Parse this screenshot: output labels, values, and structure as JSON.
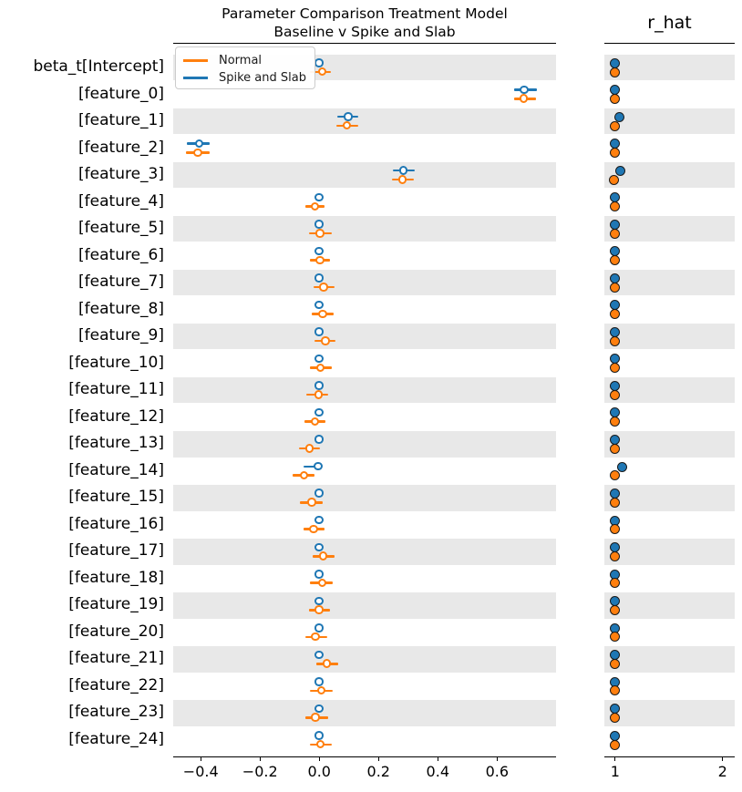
{
  "figure": {
    "title_line1": "Parameter Comparison Treatment Model",
    "title_line2": "Baseline v Spike and Slab",
    "rhat_title": "r_hat"
  },
  "legend": {
    "items": [
      {
        "label": "Normal",
        "color": "#ff7f0e"
      },
      {
        "label": "Spike and Slab",
        "color": "#1f77b4"
      }
    ]
  },
  "colors": {
    "normal": "#ff7f0e",
    "spike_slab": "#1f77b4",
    "band": "#e8e8e8"
  },
  "chart_data": {
    "type": "forest",
    "title": "Parameter Comparison Treatment Model\nBaseline v Spike and Slab",
    "legend_position": "upper left",
    "series": [
      {
        "name": "Normal",
        "color": "#ff7f0e"
      },
      {
        "name": "Spike and Slab",
        "color": "#1f77b4"
      }
    ],
    "estimate_axis": {
      "xlim": [
        -0.493,
        0.799
      ],
      "ticks": [
        {
          "v": -0.4,
          "label": "−0.4"
        },
        {
          "v": -0.2,
          "label": "−0.2"
        },
        {
          "v": 0.0,
          "label": "0.0"
        },
        {
          "v": 0.2,
          "label": "0.2"
        },
        {
          "v": 0.4,
          "label": "0.4"
        },
        {
          "v": 0.6,
          "label": "0.6"
        }
      ]
    },
    "rhat_axis": {
      "title": "r_hat",
      "xlim": [
        0.9,
        2.113
      ],
      "ticks": [
        {
          "v": 1,
          "label": "1"
        },
        {
          "v": 2,
          "label": "2"
        }
      ]
    },
    "rows": [
      {
        "label": "beta_t[Intercept]",
        "normal": {
          "mean": 0.01,
          "lo": -0.031,
          "hi": 0.039,
          "rhat": 1.0
        },
        "spike_slab": {
          "mean": 0.0,
          "lo": null,
          "hi": null,
          "rhat": 1.0
        }
      },
      {
        "label": "[feature_0]",
        "normal": {
          "mean": 0.691,
          "lo": 0.656,
          "hi": 0.732,
          "rhat": 1.0
        },
        "spike_slab": {
          "mean": 0.692,
          "lo": 0.657,
          "hi": 0.733,
          "rhat": 1.0
        }
      },
      {
        "label": "[feature_1]",
        "normal": {
          "mean": 0.094,
          "lo": 0.059,
          "hi": 0.133,
          "rhat": 1.0
        },
        "spike_slab": {
          "mean": 0.099,
          "lo": 0.062,
          "hi": 0.131,
          "rhat": 1.04
        }
      },
      {
        "label": "[feature_2]",
        "normal": {
          "mean": -0.41,
          "lo": -0.449,
          "hi": -0.369,
          "rhat": 1.0
        },
        "spike_slab": {
          "mean": -0.405,
          "lo": -0.446,
          "hi": -0.371,
          "rhat": 1.0
        }
      },
      {
        "label": "[feature_3]",
        "normal": {
          "mean": 0.282,
          "lo": 0.246,
          "hi": 0.32,
          "rhat": 0.995
        },
        "spike_slab": {
          "mean": 0.285,
          "lo": 0.248,
          "hi": 0.323,
          "rhat": 1.055
        }
      },
      {
        "label": "[feature_4]",
        "normal": {
          "mean": -0.014,
          "lo": -0.046,
          "hi": 0.018,
          "rhat": 1.0
        },
        "spike_slab": {
          "mean": 0.0,
          "lo": null,
          "hi": null,
          "rhat": 1.0
        }
      },
      {
        "label": "[feature_5]",
        "normal": {
          "mean": 0.003,
          "lo": -0.034,
          "hi": 0.041,
          "rhat": 1.0
        },
        "spike_slab": {
          "mean": 0.0,
          "lo": null,
          "hi": null,
          "rhat": 1.0
        }
      },
      {
        "label": "[feature_6]",
        "normal": {
          "mean": 0.003,
          "lo": -0.031,
          "hi": 0.037,
          "rhat": 1.0
        },
        "spike_slab": {
          "mean": 0.0,
          "lo": null,
          "hi": null,
          "rhat": 1.0
        }
      },
      {
        "label": "[feature_7]",
        "normal": {
          "mean": 0.015,
          "lo": -0.019,
          "hi": 0.053,
          "rhat": 1.0
        },
        "spike_slab": {
          "mean": 0.0,
          "lo": null,
          "hi": null,
          "rhat": 1.0
        }
      },
      {
        "label": "[feature_8]",
        "normal": {
          "mean": 0.012,
          "lo": -0.025,
          "hi": 0.047,
          "rhat": 1.0
        },
        "spike_slab": {
          "mean": 0.0,
          "lo": null,
          "hi": null,
          "rhat": 1.0
        }
      },
      {
        "label": "[feature_9]",
        "normal": {
          "mean": 0.021,
          "lo": -0.015,
          "hi": 0.056,
          "rhat": 1.0
        },
        "spike_slab": {
          "mean": 0.0,
          "lo": null,
          "hi": null,
          "rhat": 1.0
        }
      },
      {
        "label": "[feature_10]",
        "normal": {
          "mean": 0.005,
          "lo": -0.031,
          "hi": 0.041,
          "rhat": 1.0
        },
        "spike_slab": {
          "mean": 0.0,
          "lo": null,
          "hi": null,
          "rhat": 1.0
        }
      },
      {
        "label": "[feature_11]",
        "normal": {
          "mean": -0.002,
          "lo": -0.044,
          "hi": 0.031,
          "rhat": 1.0
        },
        "spike_slab": {
          "mean": 0.0,
          "lo": null,
          "hi": null,
          "rhat": 1.0
        }
      },
      {
        "label": "[feature_12]",
        "normal": {
          "mean": -0.014,
          "lo": -0.051,
          "hi": 0.021,
          "rhat": 1.0
        },
        "spike_slab": {
          "mean": 0.0,
          "lo": null,
          "hi": null,
          "rhat": 1.0
        }
      },
      {
        "label": "[feature_13]",
        "normal": {
          "mean": -0.033,
          "lo": -0.07,
          "hi": 0.002,
          "rhat": 1.0
        },
        "spike_slab": {
          "mean": 0.0,
          "lo": null,
          "hi": null,
          "rhat": 1.0
        }
      },
      {
        "label": "[feature_14]",
        "normal": {
          "mean": -0.051,
          "lo": -0.09,
          "hi": -0.015,
          "rhat": 1.0
        },
        "spike_slab": {
          "mean": -0.004,
          "lo": -0.054,
          "hi": 0.005,
          "rhat": 1.07
        }
      },
      {
        "label": "[feature_15]",
        "normal": {
          "mean": -0.025,
          "lo": -0.064,
          "hi": 0.012,
          "rhat": 1.0
        },
        "spike_slab": {
          "mean": 0.0,
          "lo": null,
          "hi": null,
          "rhat": 1.0
        }
      },
      {
        "label": "[feature_16]",
        "normal": {
          "mean": -0.018,
          "lo": -0.054,
          "hi": 0.018,
          "rhat": 1.0
        },
        "spike_slab": {
          "mean": 0.0,
          "lo": null,
          "hi": null,
          "rhat": 1.0
        }
      },
      {
        "label": "[feature_17]",
        "normal": {
          "mean": 0.013,
          "lo": -0.022,
          "hi": 0.051,
          "rhat": 1.0
        },
        "spike_slab": {
          "mean": 0.0,
          "lo": null,
          "hi": null,
          "rhat": 1.0
        }
      },
      {
        "label": "[feature_18]",
        "normal": {
          "mean": 0.01,
          "lo": -0.033,
          "hi": 0.046,
          "rhat": 1.0
        },
        "spike_slab": {
          "mean": 0.0,
          "lo": null,
          "hi": null,
          "rhat": 1.0
        }
      },
      {
        "label": "[feature_19]",
        "normal": {
          "mean": 0.0,
          "lo": -0.036,
          "hi": 0.036,
          "rhat": 1.0
        },
        "spike_slab": {
          "mean": 0.0,
          "lo": null,
          "hi": null,
          "rhat": 1.0
        }
      },
      {
        "label": "[feature_20]",
        "normal": {
          "mean": -0.012,
          "lo": -0.048,
          "hi": 0.026,
          "rhat": 1.0
        },
        "spike_slab": {
          "mean": 0.0,
          "lo": null,
          "hi": null,
          "rhat": 1.0
        }
      },
      {
        "label": "[feature_21]",
        "normal": {
          "mean": 0.026,
          "lo": -0.01,
          "hi": 0.065,
          "rhat": 1.0
        },
        "spike_slab": {
          "mean": 0.0,
          "lo": null,
          "hi": null,
          "rhat": 1.0
        }
      },
      {
        "label": "[feature_22]",
        "normal": {
          "mean": 0.007,
          "lo": -0.031,
          "hi": 0.046,
          "rhat": 1.0
        },
        "spike_slab": {
          "mean": 0.0,
          "lo": null,
          "hi": null,
          "rhat": 1.0
        }
      },
      {
        "label": "[feature_23]",
        "normal": {
          "mean": -0.012,
          "lo": -0.046,
          "hi": 0.029,
          "rhat": 1.0
        },
        "spike_slab": {
          "mean": 0.0,
          "lo": null,
          "hi": null,
          "rhat": 1.0
        }
      },
      {
        "label": "[feature_24]",
        "normal": {
          "mean": 0.005,
          "lo": -0.033,
          "hi": 0.041,
          "rhat": 1.0
        },
        "spike_slab": {
          "mean": 0.0,
          "lo": null,
          "hi": null,
          "rhat": 1.0
        }
      }
    ]
  }
}
